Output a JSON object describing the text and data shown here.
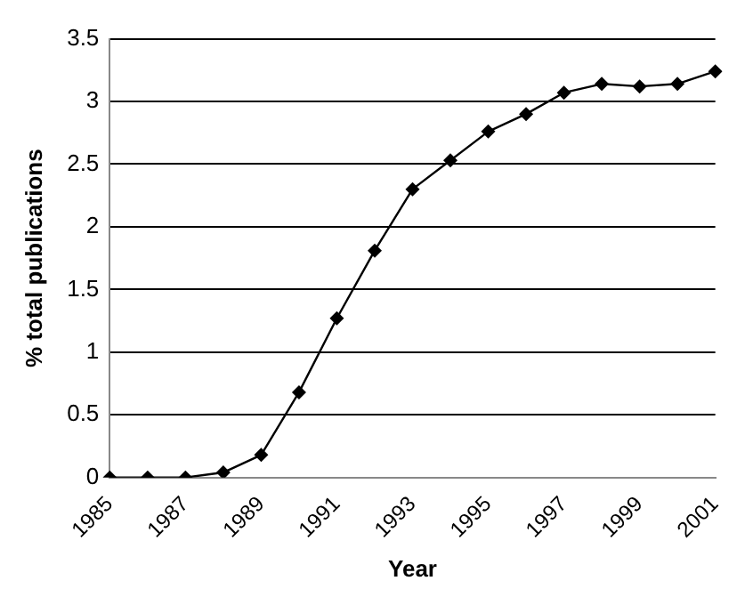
{
  "chart_data": {
    "type": "line",
    "xlabel": "Year",
    "ylabel": "% total publications",
    "categories": [
      "1985",
      null,
      "1987",
      null,
      "1989",
      null,
      "1991",
      null,
      "1993",
      null,
      "1995",
      null,
      "1997",
      null,
      "1999",
      null,
      "2001"
    ],
    "series": [
      {
        "color": "#000000",
        "values": [
          0,
          0,
          0,
          0.04,
          0.18,
          0.68,
          1.27,
          1.81,
          2.3,
          2.53,
          2.76,
          2.9,
          3.07,
          3.14,
          3.12,
          3.14,
          3.24
        ]
      }
    ],
    "ylim": [
      0,
      3.5
    ],
    "yticks": [
      0,
      0.5,
      1,
      1.5,
      2,
      2.5,
      3,
      3.5
    ],
    "grid": "y",
    "legend": false,
    "marker": "diamond",
    "line_style": "solid"
  }
}
